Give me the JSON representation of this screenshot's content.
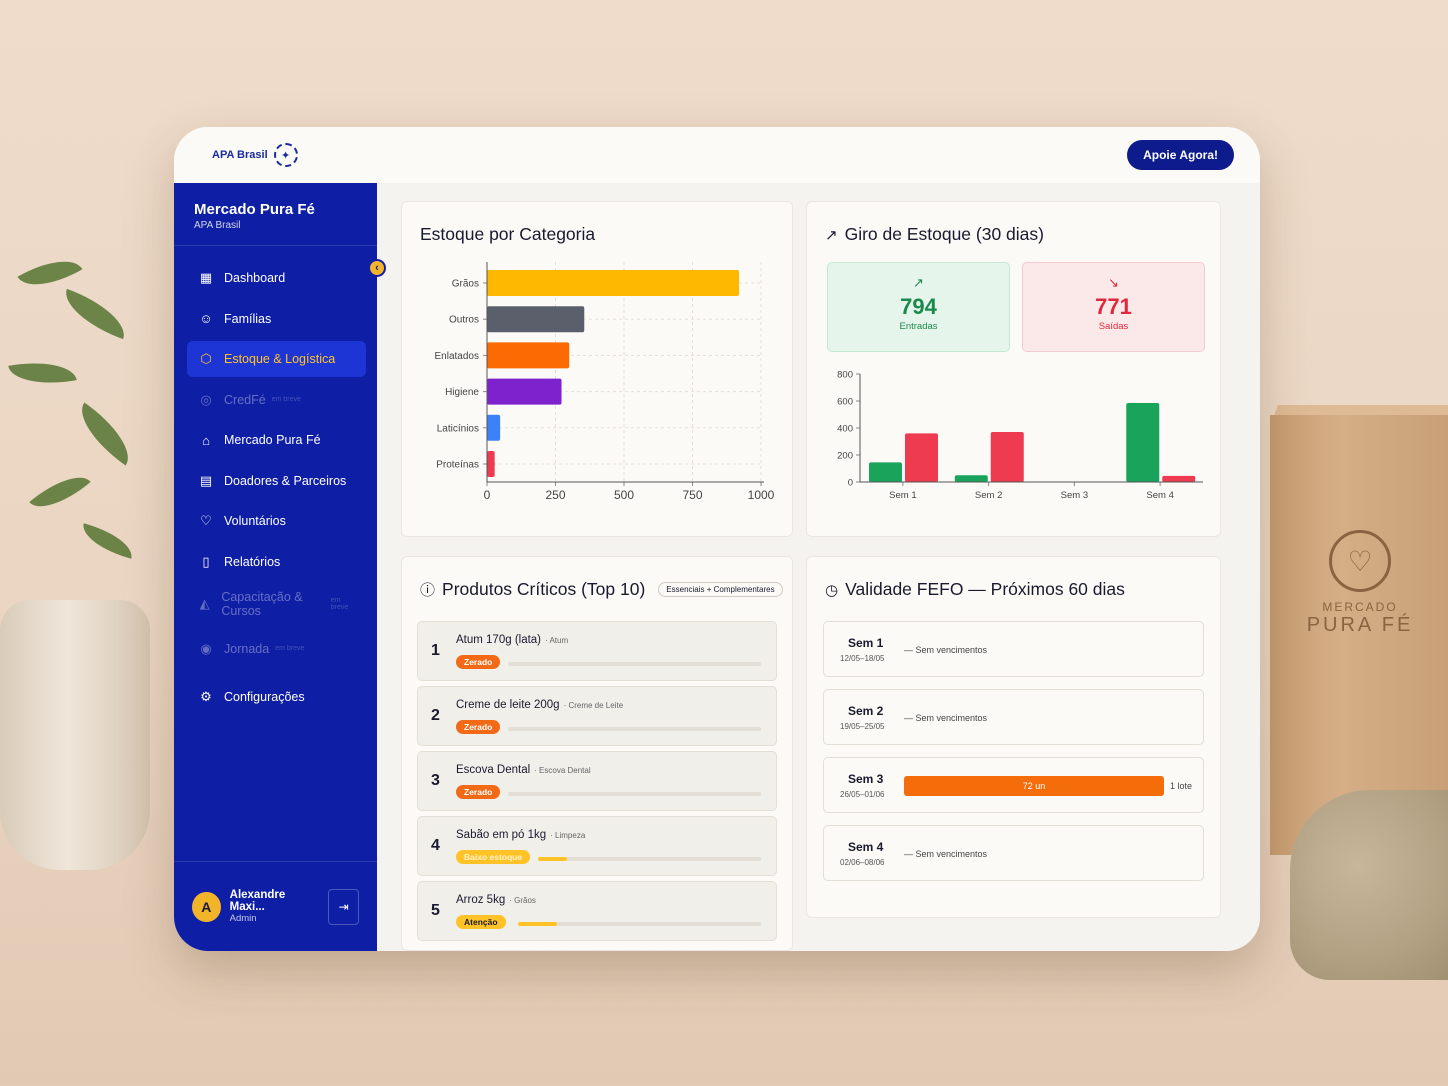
{
  "header": {
    "brand": "APA Brasil",
    "cta": "Apoie Agora!"
  },
  "sidebar": {
    "org_name": "Mercado Pura Fé",
    "org_sub": "APA Brasil",
    "items": [
      {
        "label": "Dashboard",
        "icon": "grid-icon",
        "state": "normal",
        "soon": ""
      },
      {
        "label": "Famílias",
        "icon": "users-icon",
        "state": "normal",
        "soon": ""
      },
      {
        "label": "Estoque & Logística",
        "icon": "box-icon",
        "state": "active",
        "soon": ""
      },
      {
        "label": "CredFé",
        "icon": "coins-icon",
        "state": "disabled",
        "soon": "em breve"
      },
      {
        "label": "Mercado Pura Fé",
        "icon": "store-icon",
        "state": "normal",
        "soon": ""
      },
      {
        "label": "Doadores & Parceiros",
        "icon": "building-icon",
        "state": "normal",
        "soon": ""
      },
      {
        "label": "Voluntários",
        "icon": "heart-hand-icon",
        "state": "normal",
        "soon": ""
      },
      {
        "label": "Relatórios",
        "icon": "report-icon",
        "state": "normal",
        "soon": ""
      },
      {
        "label": "Capacitação & Cursos",
        "icon": "graduation-icon",
        "state": "disabled",
        "soon": "em breve"
      },
      {
        "label": "Jornada",
        "icon": "target-icon",
        "state": "disabled",
        "soon": "em breve"
      },
      {
        "label": "Configurações",
        "icon": "gear-icon",
        "state": "normal",
        "soon": ""
      }
    ],
    "user": {
      "initial": "A",
      "name": "Alexandre Maxi...",
      "role": "Admin"
    }
  },
  "stock_card": {
    "title": "Estoque por Categoria",
    "chart_data": {
      "type": "bar",
      "orientation": "horizontal",
      "categories": [
        "Grãos",
        "Outros",
        "Enlatados",
        "Higiene",
        "Laticínios",
        "Proteínas"
      ],
      "values": [
        920,
        355,
        300,
        272,
        48,
        28
      ],
      "colors": [
        "#ffb800",
        "#5a5f6b",
        "#fc6a03",
        "#7e22ce",
        "#3b82f6",
        "#ef3b50"
      ],
      "xticks": [
        "0",
        "250",
        "500",
        "750",
        "1000"
      ],
      "xlim": [
        0,
        1000
      ],
      "grid": "dashed vertical"
    }
  },
  "turnover_card": {
    "title": "Giro de Estoque (30 dias)",
    "in": {
      "value": "794",
      "label": "Entradas"
    },
    "out": {
      "value": "771",
      "label": "Saídas"
    },
    "chart_data": {
      "type": "bar",
      "categories": [
        "Sem 1",
        "Sem 2",
        "Sem 3",
        "Sem 4"
      ],
      "series": [
        {
          "values": [
            145,
            50,
            0,
            585
          ],
          "color": "#1aa35b"
        },
        {
          "values": [
            360,
            370,
            0,
            45
          ],
          "color": "#ef3b50"
        }
      ],
      "yticks": [
        "0",
        "200",
        "400",
        "600",
        "800"
      ],
      "ylim": [
        0,
        800
      ]
    }
  },
  "critical_card": {
    "title": "Produtos Críticos (Top 10)",
    "badge": "Essenciais + Complementares",
    "items": [
      {
        "rank": "1",
        "name": "Atum 170g (lata)",
        "category": "· Atum",
        "tag": "Zerado",
        "tag_type": "zerado",
        "level": 0
      },
      {
        "rank": "2",
        "name": "Creme de leite 200g",
        "category": "· Creme de Leite",
        "tag": "Zerado",
        "tag_type": "zerado",
        "level": 0
      },
      {
        "rank": "3",
        "name": "Escova Dental",
        "category": "· Escova Dental",
        "tag": "Zerado",
        "tag_type": "zerado",
        "level": 0
      },
      {
        "rank": "4",
        "name": "Sabão em pó 1kg",
        "category": "· Limpeza",
        "tag": "Baixo estoque",
        "tag_type": "baixo",
        "level": 0.13
      },
      {
        "rank": "5",
        "name": "Arroz 5kg",
        "category": "· Grãos",
        "tag": "Atenção",
        "tag_type": "atencao",
        "level": 0.16
      }
    ]
  },
  "fefo_card": {
    "title": "Validade FEFO — Próximos 60 dias",
    "weeks": [
      {
        "name": "Sem 1",
        "dates": "12/05–18/05",
        "text": "— Sem vencimentos",
        "bar": "",
        "lots": ""
      },
      {
        "name": "Sem 2",
        "dates": "19/05–25/05",
        "text": "— Sem vencimentos",
        "bar": "",
        "lots": ""
      },
      {
        "name": "Sem 3",
        "dates": "26/05–01/06",
        "text": "",
        "bar": "72 un",
        "lots": "1 lote"
      },
      {
        "name": "Sem 4",
        "dates": "02/06–08/06",
        "text": "— Sem vencimentos",
        "bar": "",
        "lots": ""
      }
    ]
  },
  "scene": {
    "box_brand_1": "MERCADO",
    "box_brand_2": "PURA FÉ"
  }
}
